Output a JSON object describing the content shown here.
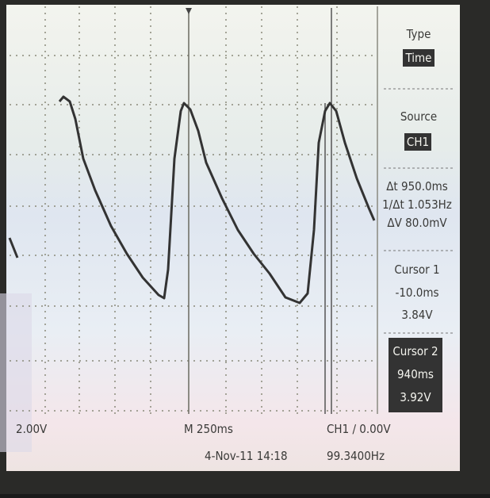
{
  "menu": {
    "type_label": "Type",
    "type_value": "Time",
    "source_label": "Source",
    "source_value": "CH1",
    "measurements": [
      "Δt 950.0ms",
      "1/Δt 1.053Hz",
      "ΔV 80.0mV"
    ],
    "cursor1": {
      "label": "Cursor 1",
      "time": "-10.0ms",
      "voltage": "3.84V"
    },
    "cursor2": {
      "label": "Cursor 2",
      "time": "940ms",
      "voltage": "3.92V"
    }
  },
  "status": {
    "ch1_scale": "2.00V",
    "timebase": "M 250ms",
    "trigger": "CH1 ∕ 0.00V",
    "date": "4-Nov-11 14:18",
    "frequency": "99.3400Hz"
  }
}
